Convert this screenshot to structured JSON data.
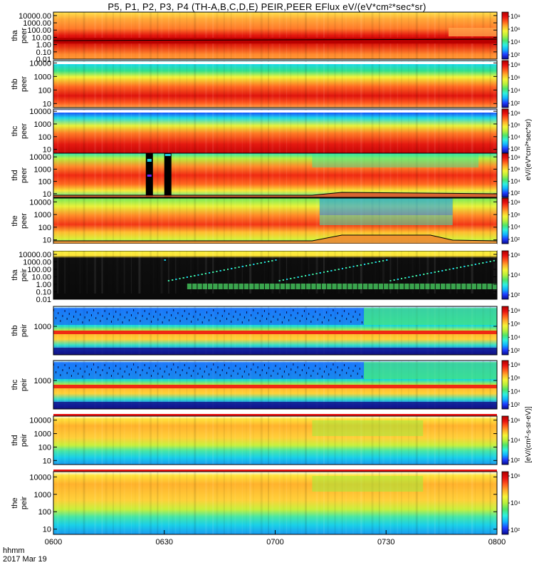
{
  "title": "P5, P1, P2, P3, P4 (TH-A,B,C,D,E) PEIR,PEER EFlux eV/(eV*cm²*sec*sr)",
  "footer": {
    "line1": "hhmm",
    "line2": "2017 Mar 19"
  },
  "chart_data": [
    {
      "type": "heatmap",
      "probe": "tha",
      "species": "peer",
      "ylabel": [
        "tha",
        "peer"
      ],
      "yscale": "log",
      "ytick_labels": [
        "10000.00",
        "1000.00",
        "100.00",
        "10.00",
        "1.00",
        "0.10",
        "0.01"
      ],
      "ylim": [
        0.01,
        30000
      ],
      "colorbar": {
        "scale": "log",
        "tick_labels": [
          "10⁸",
          "10⁶",
          "10⁴",
          "10²"
        ],
        "label": "eV/(eV*cm²*sec*sr)"
      }
    },
    {
      "type": "heatmap",
      "probe": "thb",
      "species": "peer",
      "ylabel": [
        "thb",
        "peer"
      ],
      "yscale": "log",
      "ytick_labels": [
        "10000",
        "1000",
        "100",
        "10"
      ],
      "ylim": [
        5,
        15000
      ],
      "colorbar": {
        "scale": "log",
        "tick_labels": [
          "10⁸",
          "10⁶",
          "10⁴",
          "10²"
        ],
        "label": "eV/(eV*cm²*sec*sr)"
      }
    },
    {
      "type": "heatmap",
      "probe": "thc",
      "species": "peer",
      "ylabel": [
        "thc",
        "peer"
      ],
      "yscale": "log",
      "ytick_labels": [
        "10000",
        "1000",
        "100",
        "10"
      ],
      "ylim": [
        5,
        15000
      ],
      "colorbar": {
        "scale": "log",
        "tick_labels": [
          "10⁸",
          "10⁶",
          "10⁴",
          "10²"
        ],
        "label": "eV/(eV*cm²*sec*sr)"
      }
    },
    {
      "type": "heatmap",
      "probe": "thd",
      "species": "peer",
      "ylabel": [
        "thd",
        "peer"
      ],
      "yscale": "log",
      "ytick_labels": [
        "10000",
        "1000",
        "100",
        "10"
      ],
      "ylim": [
        5,
        20000
      ],
      "colorbar": {
        "scale": "log",
        "tick_labels": [
          "10⁸",
          "10⁶",
          "10⁴",
          "10²"
        ],
        "label": "eV/(eV*cm²*sec*sr)"
      }
    },
    {
      "type": "heatmap",
      "probe": "the",
      "species": "peer",
      "ylabel": [
        "the",
        "peer"
      ],
      "yscale": "log",
      "ytick_labels": [
        "10000",
        "1000",
        "100",
        "10"
      ],
      "ylim": [
        5,
        20000
      ],
      "colorbar": {
        "scale": "log",
        "tick_labels": [
          "10⁸",
          "10⁶",
          "10⁴",
          "10²"
        ],
        "label": "eV/(eV*cm²*sec*sr)"
      }
    },
    {
      "type": "heatmap",
      "probe": "tha",
      "species": "peir",
      "ylabel": [
        "tha",
        "peir"
      ],
      "yscale": "log",
      "ytick_labels": [
        "10000.00",
        "1000.00",
        "100.00",
        "10.00",
        "1.00",
        "0.10",
        "0.01"
      ],
      "ylim": [
        0.01,
        30000
      ],
      "colorbar": {
        "scale": "log",
        "tick_labels": [
          "10⁶",
          "10⁴",
          "10²"
        ],
        "label": "eV/(eV*cm²*sec*sr)"
      }
    },
    {
      "type": "heatmap",
      "probe": "thb",
      "species": "peir",
      "ylabel": [
        "thb",
        "peir"
      ],
      "yscale": "log",
      "ytick_labels": [
        "1000"
      ],
      "ylim": [
        10,
        25000
      ],
      "colorbar": {
        "scale": "log",
        "tick_labels": [
          "10⁸",
          "10⁶",
          "10⁴",
          "10²"
        ],
        "label": "eV/(cm²-s-sr-eV)"
      }
    },
    {
      "type": "heatmap",
      "probe": "thc",
      "species": "peir",
      "ylabel": [
        "thc",
        "peir"
      ],
      "yscale": "log",
      "ytick_labels": [
        "1000"
      ],
      "ylim": [
        10,
        25000
      ],
      "colorbar": {
        "scale": "log",
        "tick_labels": [
          "10⁸",
          "10⁶",
          "10⁴",
          "10²"
        ],
        "label": "eV/(cm²-s-sr-eV)"
      }
    },
    {
      "type": "heatmap",
      "probe": "thd",
      "species": "peir",
      "ylabel": [
        "thd",
        "peir"
      ],
      "yscale": "log",
      "ytick_labels": [
        "10000",
        "1000",
        "100",
        "10"
      ],
      "ylim": [
        5,
        20000
      ],
      "colorbar": {
        "scale": "log",
        "tick_labels": [
          "10⁶",
          "10⁴",
          "10²"
        ],
        "label": "eV/(cm²-s-sr-eV)"
      }
    },
    {
      "type": "heatmap",
      "probe": "the",
      "species": "peir",
      "ylabel": [
        "the",
        "peir"
      ],
      "yscale": "log",
      "ytick_labels": [
        "10000",
        "1000",
        "100",
        "10"
      ],
      "ylim": [
        5,
        20000
      ],
      "colorbar": {
        "scale": "log",
        "tick_labels": [
          "10⁶",
          "10⁴",
          "10²"
        ],
        "label": "eV/(cm²-s-sr-eV)"
      }
    }
  ],
  "x_axis": {
    "tick_labels": [
      "0600",
      "0630",
      "0700",
      "0730",
      "0800"
    ],
    "range": [
      "06:00",
      "08:00"
    ]
  },
  "colorbar_side_labels": {
    "upper": "eV/(eV*cm²*sec*sr)",
    "lower": "[eV/(cm²-s-sr-eV)]"
  }
}
